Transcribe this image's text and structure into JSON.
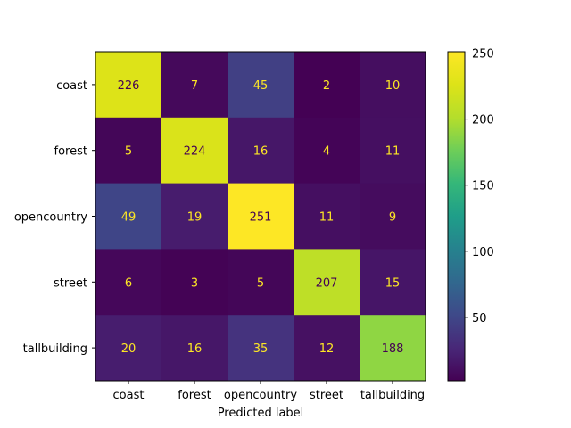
{
  "chart_data": {
    "type": "heatmap",
    "title": "",
    "xlabel": "Predicted label",
    "ylabel": "",
    "x_categories": [
      "coast",
      "forest",
      "opencountry",
      "street",
      "tallbuilding"
    ],
    "y_categories": [
      "coast",
      "forest",
      "opencountry",
      "street",
      "tallbuilding"
    ],
    "values": [
      [
        226,
        7,
        45,
        2,
        10
      ],
      [
        5,
        224,
        16,
        4,
        11
      ],
      [
        49,
        19,
        251,
        11,
        9
      ],
      [
        6,
        3,
        5,
        207,
        15
      ],
      [
        20,
        16,
        35,
        12,
        188
      ]
    ],
    "colormap": "viridis",
    "color_range": [
      2,
      251
    ],
    "colorbar": {
      "ticks": [
        50,
        100,
        150,
        200,
        250
      ]
    },
    "grid": false
  }
}
